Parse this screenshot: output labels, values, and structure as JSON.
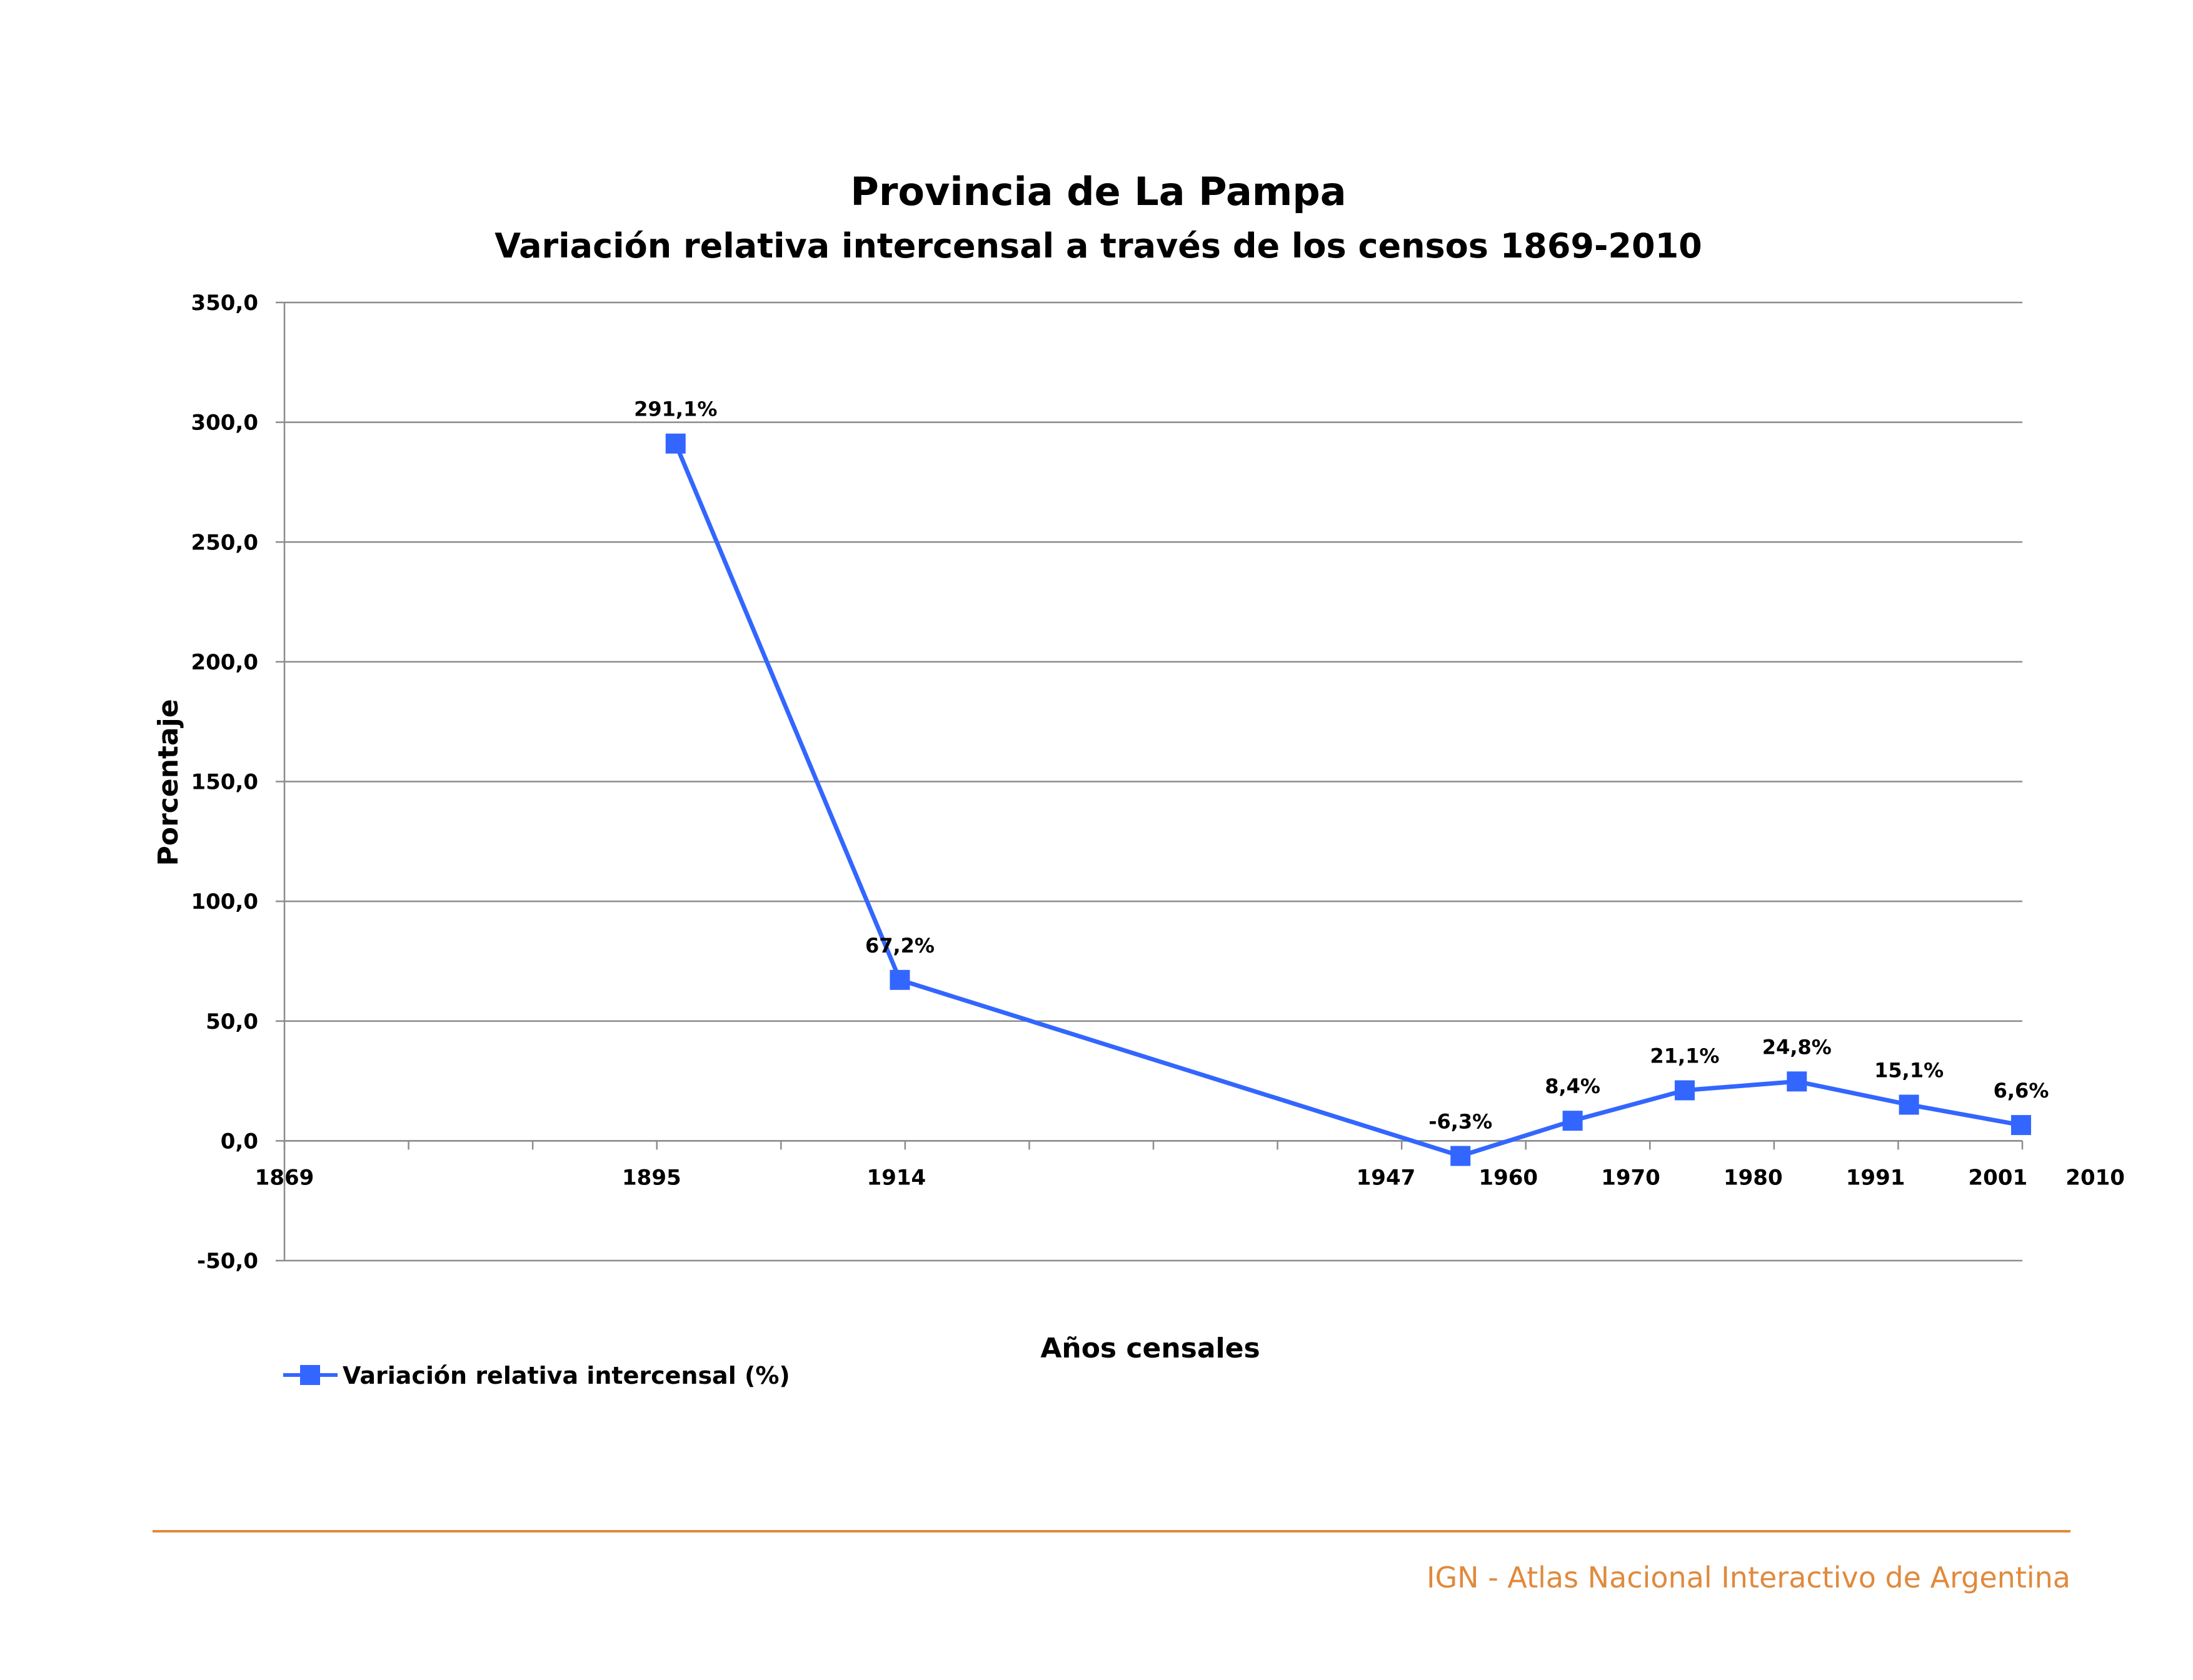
{
  "chart_data": {
    "type": "line",
    "title": "Provincia de La Pampa",
    "subtitle": "Variación relativa intercensal a través de los censos 1869-2010",
    "ylabel": "Porcentaje",
    "xlabel": "Años censales",
    "ylim": [
      -50,
      350
    ],
    "yticks": [
      "350,0",
      "300,0",
      "250,0",
      "200,0",
      "150,0",
      "100,0",
      "50,0",
      "0,0",
      "-50,0"
    ],
    "x_tick_labels": [
      "1869",
      "1895",
      "1914",
      "1947",
      "1960",
      "1970",
      "1980",
      "1991",
      "2001",
      "2010"
    ],
    "series": [
      {
        "name": "Variación relativa intercensal (%)",
        "color": "#3366FF",
        "values": [
          291.1,
          67.2,
          -6.3,
          8.4,
          21.1,
          24.8,
          15.1,
          6.6
        ],
        "labels": [
          "291,1%",
          "67,2%",
          "-6,3%",
          "8,4%",
          "21,1%",
          "24,8%",
          "15,1%",
          "6,6%"
        ]
      }
    ],
    "grid": true,
    "legend_position": "bottom-left"
  },
  "footer": {
    "text": "IGN - Atlas Nacional Interactivo de Argentina",
    "color": "#E08A3C"
  }
}
